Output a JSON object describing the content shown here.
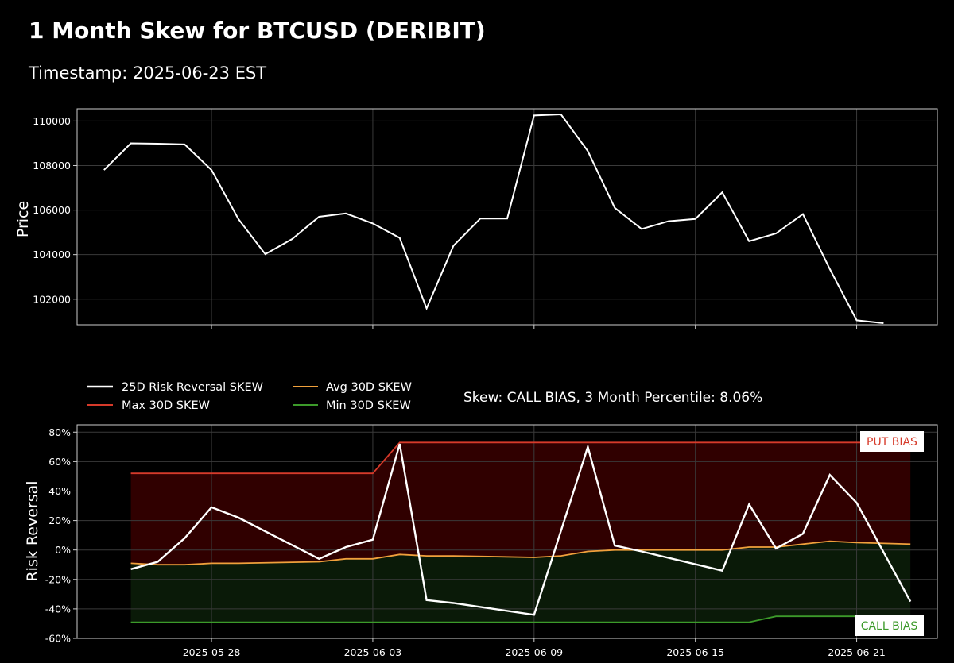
{
  "header": {
    "title": "1 Month Skew for BTCUSD (DERIBIT)",
    "timestamp": "Timestamp: 2025-06-23 EST"
  },
  "colors": {
    "background": "#000000",
    "price_line": "#ffffff",
    "skew_line": "#ffffff",
    "max_line": "#d63a2a",
    "avg_line": "#f0a03c",
    "min_line": "#3c9a2a",
    "put_fill": "#300000",
    "call_fill": "#0a1a08"
  },
  "chart_data": [
    {
      "type": "line",
      "ylabel": "Price",
      "grid": true,
      "xlim": [
        "2025-05-23",
        "2025-06-24"
      ],
      "ylim": [
        100850,
        110550
      ],
      "yticks": [
        102000,
        104000,
        106000,
        108000,
        110000
      ],
      "yticklabels": [
        "102000",
        "104000",
        "106000",
        "108000",
        "110000"
      ],
      "x": [
        "2025-05-24",
        "2025-05-25",
        "2025-05-26",
        "2025-05-27",
        "2025-05-28",
        "2025-05-29",
        "2025-05-30",
        "2025-05-31",
        "2025-06-01",
        "2025-06-02",
        "2025-06-03",
        "2025-06-04",
        "2025-06-05",
        "2025-06-06",
        "2025-06-07",
        "2025-06-08",
        "2025-06-09",
        "2025-06-10",
        "2025-06-11",
        "2025-06-12",
        "2025-06-13",
        "2025-06-14",
        "2025-06-15",
        "2025-06-16",
        "2025-06-17",
        "2025-06-18",
        "2025-06-19",
        "2025-06-20",
        "2025-06-21",
        "2025-06-22",
        "2025-06-23"
      ],
      "series": [
        {
          "values": [
            107800,
            109000,
            108980,
            108950,
            107800,
            105600,
            104020,
            104700,
            105700,
            105850,
            105400,
            104750,
            101580,
            104400,
            105620,
            105620,
            110250,
            110300,
            108650,
            106100,
            105150,
            105500,
            105600,
            106800,
            104600,
            104950,
            105820,
            103350,
            101050,
            100920,
            null
          ]
        }
      ]
    },
    {
      "type": "line",
      "ylabel": "Risk Reversal",
      "grid": true,
      "xlim": [
        "2025-05-23",
        "2025-06-24"
      ],
      "ylim": [
        -60,
        85
      ],
      "yticks": [
        -60,
        -40,
        -20,
        0,
        20,
        40,
        60,
        80
      ],
      "yticklabels": [
        "-60%",
        "-40%",
        "-20%",
        "0%",
        "20%",
        "40%",
        "60%",
        "80%"
      ],
      "xticks": [
        "2025-05-28",
        "2025-06-03",
        "2025-06-09",
        "2025-06-15",
        "2025-06-21"
      ],
      "x": [
        "2025-05-25",
        "2025-05-26",
        "2025-05-27",
        "2025-05-28",
        "2025-05-29",
        "2025-06-01",
        "2025-06-02",
        "2025-06-03",
        "2025-06-04",
        "2025-06-05",
        "2025-06-06",
        "2025-06-09",
        "2025-06-10",
        "2025-06-11",
        "2025-06-12",
        "2025-06-13",
        "2025-06-16",
        "2025-06-17",
        "2025-06-18",
        "2025-06-19",
        "2025-06-20",
        "2025-06-21",
        "2025-06-23"
      ],
      "series": [
        {
          "name": "25D Risk Reversal SKEW",
          "color": "#ffffff",
          "values": [
            -13,
            -8,
            8,
            29,
            22,
            -6,
            2,
            7,
            72,
            -34,
            -36,
            -44,
            13,
            70,
            3,
            -1,
            -14,
            31,
            1,
            11,
            51,
            32,
            -35
          ]
        },
        {
          "name": "Max 30D SKEW",
          "color": "#d63a2a",
          "values": [
            52,
            52,
            52,
            52,
            52,
            52,
            52,
            52,
            73,
            73,
            73,
            73,
            73,
            73,
            73,
            73,
            73,
            73,
            73,
            73,
            73,
            73,
            73
          ]
        },
        {
          "name": "Avg 30D SKEW",
          "color": "#f0a03c",
          "values": [
            -9,
            -10,
            -10,
            -9,
            -9,
            -8,
            -6,
            -6,
            -3,
            -4,
            -4,
            -5,
            -4,
            -1,
            0,
            0,
            0,
            2,
            2,
            4,
            6,
            5,
            4
          ]
        },
        {
          "name": "Min 30D SKEW",
          "color": "#3c9a2a",
          "values": [
            -49,
            -49,
            -49,
            -49,
            -49,
            -49,
            -49,
            -49,
            -49,
            -49,
            -49,
            -49,
            -49,
            -49,
            -49,
            -49,
            -49,
            -49,
            -45,
            -45,
            -45,
            -45,
            -45
          ]
        }
      ],
      "annotations": {
        "skew_status": "Skew: CALL BIAS, 3 Month Percentile: 8.06%",
        "put_bias": "PUT BIAS",
        "call_bias": "CALL BIAS"
      },
      "legend": "top-left"
    }
  ]
}
